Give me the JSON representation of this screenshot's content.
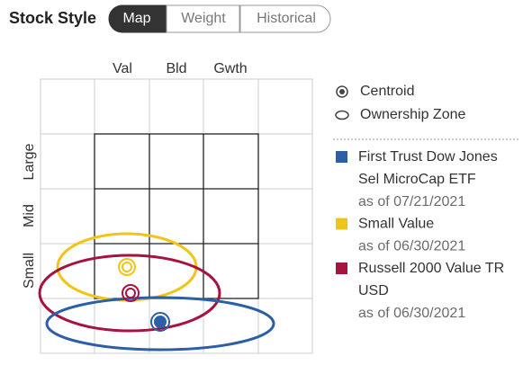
{
  "header": {
    "title": "Stock Style",
    "tabs": [
      {
        "label": "Map",
        "active": true
      },
      {
        "label": "Weight",
        "active": false
      },
      {
        "label": "Historical",
        "active": false
      }
    ]
  },
  "style_box": {
    "columns": [
      "Val",
      "Bld",
      "Gwth"
    ],
    "rows": [
      "Large",
      "Mid",
      "Small"
    ]
  },
  "legend": {
    "symbols": [
      "Centroid",
      "Ownership Zone"
    ],
    "items": [
      {
        "name_lines": [
          "First Trust Dow Jones",
          "Sel MicroCap ETF"
        ],
        "date": "as of 07/21/2021",
        "color": "#2b5fa8"
      },
      {
        "name_lines": [
          "Small Value"
        ],
        "date": "as of 06/30/2021",
        "color": "#f0c419"
      },
      {
        "name_lines": [
          "Russell 2000 Value TR",
          "USD"
        ],
        "date": "as of 06/30/2021",
        "color": "#a8123e"
      }
    ]
  }
}
